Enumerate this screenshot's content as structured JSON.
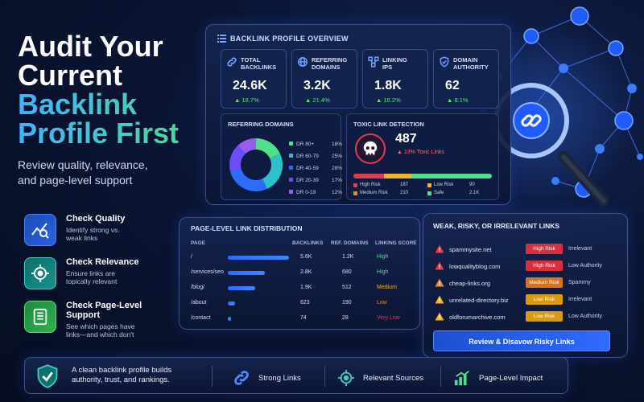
{
  "hero": {
    "title_line1": "Audit Your",
    "title_line2": "Current",
    "title_line3": "Backlink",
    "title_line4": "Profile First",
    "subtitle_line1": "Review quality, relevance,",
    "subtitle_line2": "and page-level support"
  },
  "features": [
    {
      "title": "Check Quality",
      "desc_line1": "Identify strong vs.",
      "desc_line2": "weak links",
      "icon": "chart-search-icon"
    },
    {
      "title": "Check Relevance",
      "desc_line1": "Ensure links are",
      "desc_line2": "topically relevant",
      "icon": "target-icon"
    },
    {
      "title": "Check Page-Level Support",
      "desc_line1": "See which pages have",
      "desc_line2": "links—and which don't",
      "icon": "document-list-icon"
    }
  ],
  "overview": {
    "title": "BACKLINK PROFILE OVERVIEW",
    "metrics": [
      {
        "label_line1": "Total",
        "label_line2": "Backlinks",
        "value": "24.6K",
        "change": "▲ 18.7%"
      },
      {
        "label_line1": "Referring",
        "label_line2": "Domains",
        "value": "3.2K",
        "change": "▲ 21.4%"
      },
      {
        "label_line1": "Linking",
        "label_line2": "IPs",
        "value": "1.8K",
        "change": "▲ 16.2%"
      },
      {
        "label_line1": "Domain",
        "label_line2": "Authority",
        "value": "62",
        "change": "▲ 8.1%"
      }
    ],
    "referring_domains": {
      "title": "REFERRING DOMAINS",
      "rows": [
        {
          "label": "DR 80+",
          "pct": "18%",
          "value": 18,
          "color": "#4ee08a"
        },
        {
          "label": "DR 60-79",
          "pct": "25%",
          "value": 25,
          "color": "#2bc3c9"
        },
        {
          "label": "DR 40-59",
          "pct": "28%",
          "value": 28,
          "color": "#2f6bff"
        },
        {
          "label": "DR 20-39",
          "pct": "17%",
          "value": 17,
          "color": "#6b4cf5"
        },
        {
          "label": "DR 0-19",
          "pct": "12%",
          "value": 12,
          "color": "#9a5cf0"
        }
      ]
    },
    "toxic": {
      "title": "TOXIC LINK DETECTION",
      "value": "487",
      "sub": "▲ 13% Toxic Links",
      "legend": [
        {
          "label": "High Risk",
          "value": "187",
          "color": "#e23b4f"
        },
        {
          "label": "Low Risk",
          "value": "90",
          "color": "#f0b429"
        },
        {
          "label": "Medium Risk",
          "value": "210",
          "color": "#f08a29"
        },
        {
          "label": "Safe",
          "value": "2.1K",
          "color": "#4ee08a"
        }
      ]
    }
  },
  "page_level": {
    "title": "PAGE-LEVEL LINK DISTRIBUTION",
    "headers": {
      "page": "PAGE",
      "backlinks": "BACKLINKS",
      "ref_domains": "REF. DOMAINS",
      "score": "LINKING SCORE"
    },
    "rows": [
      {
        "page": "/",
        "backlinks": "5.6K",
        "ref_domains": "1.2K",
        "score": "High",
        "score_color": "#4ee08a",
        "bar": 1.0
      },
      {
        "page": "/services/seo",
        "backlinks": "2.8K",
        "ref_domains": "680",
        "score": "High",
        "score_color": "#4ee08a",
        "bar": 0.6
      },
      {
        "page": "/blog/",
        "backlinks": "1.9K",
        "ref_domains": "512",
        "score": "Medium",
        "score_color": "#f0b429",
        "bar": 0.45
      },
      {
        "page": "/about",
        "backlinks": "623",
        "ref_domains": "190",
        "score": "Low",
        "score_color": "#f08a29",
        "bar": 0.12
      },
      {
        "page": "/contact",
        "backlinks": "74",
        "ref_domains": "28",
        "score": "Very Low",
        "score_color": "#e23b4f",
        "bar": 0.05
      }
    ]
  },
  "weak_links": {
    "title": "WEAK, RISKY, OR IRRELEVANT LINKS",
    "rows": [
      {
        "domain": "spammysite.net",
        "badge": "High Risk",
        "badge_color": "#d6303f",
        "reason": "Irrelevant",
        "warn_color": "#e23b4f"
      },
      {
        "domain": "lowqualityblog.com",
        "badge": "High Risk",
        "badge_color": "#d6303f",
        "reason": "Low Authority",
        "warn_color": "#e23b4f"
      },
      {
        "domain": "cheap-links.org",
        "badge": "Medium Risk",
        "badge_color": "#d9721c",
        "reason": "Spammy",
        "warn_color": "#f08a29"
      },
      {
        "domain": "unrelated-directory.biz",
        "badge": "Low Risk",
        "badge_color": "#d99a12",
        "reason": "Irrelevant",
        "warn_color": "#f0b429"
      },
      {
        "domain": "oldforumarchive.com",
        "badge": "Low Risk",
        "badge_color": "#d99a12",
        "reason": "Low Authority",
        "warn_color": "#f0b429"
      }
    ],
    "button": "Review & Disavow Risky Links"
  },
  "bottom": {
    "text_line1": "A clean backlink profile builds",
    "text_line2": "authority, trust, and rankings.",
    "items": [
      "Strong Links",
      "Relevant Sources",
      "Page-Level Impact"
    ]
  }
}
